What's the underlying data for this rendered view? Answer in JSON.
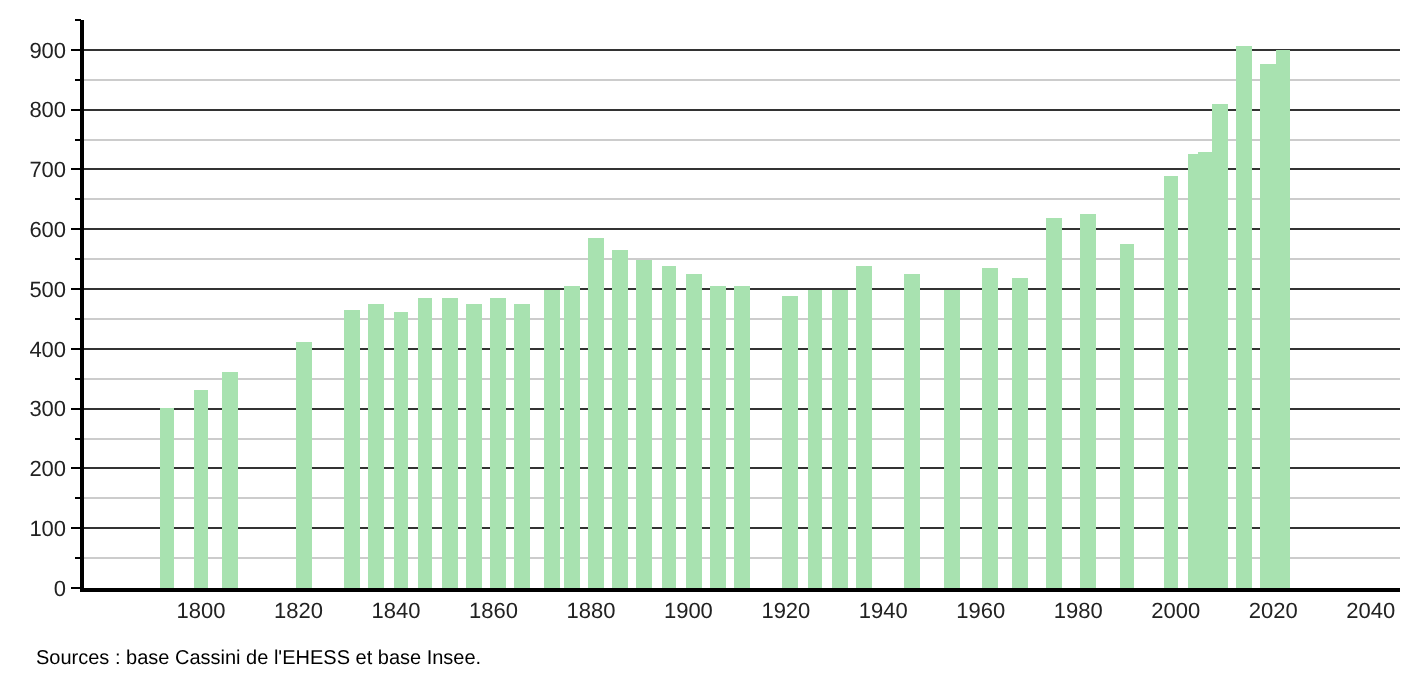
{
  "chart_data": {
    "type": "bar",
    "x": [
      1793,
      1800,
      1806,
      1821,
      1831,
      1836,
      1841,
      1846,
      1851,
      1856,
      1861,
      1866,
      1872,
      1876,
      1881,
      1886,
      1891,
      1896,
      1901,
      1906,
      1911,
      1921,
      1926,
      1931,
      1936,
      1946,
      1954,
      1962,
      1968,
      1975,
      1982,
      1990,
      1999,
      2004,
      2006,
      2009,
      2014,
      2019,
      2022
    ],
    "values": [
      300,
      330,
      360,
      410,
      465,
      475,
      460,
      485,
      485,
      475,
      485,
      475,
      500,
      505,
      585,
      565,
      550,
      540,
      525,
      505,
      505,
      490,
      500,
      500,
      540,
      525,
      500,
      535,
      520,
      620,
      625,
      575,
      690,
      725,
      728,
      808,
      905,
      875,
      900
    ],
    "color": "#a8e2b0",
    "xlim": [
      1776,
      2046
    ],
    "xticks": [
      1800,
      1820,
      1840,
      1860,
      1880,
      1900,
      1920,
      1940,
      1960,
      1980,
      2000,
      2020,
      2040
    ],
    "ylim": [
      0,
      950
    ],
    "yticks": [
      0,
      100,
      200,
      300,
      400,
      500,
      600,
      700,
      800,
      900
    ],
    "grid": "y",
    "annotations": [
      "Sources : base Cassini de l'EHESS et base Insee."
    ]
  }
}
